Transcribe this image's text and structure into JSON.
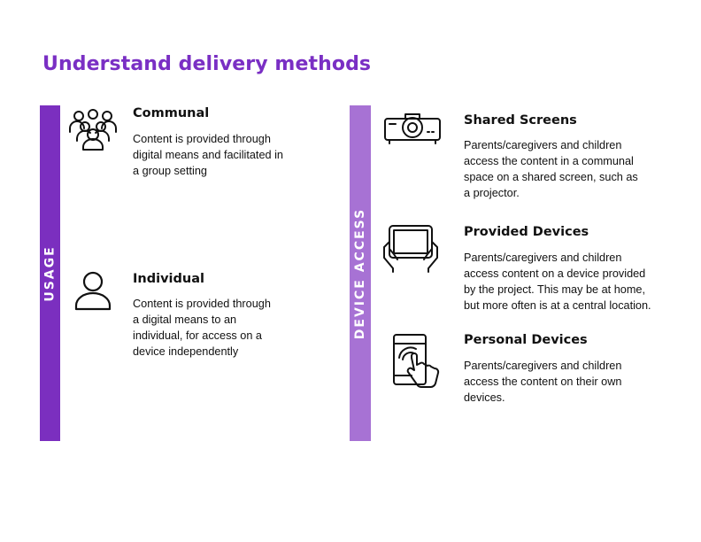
{
  "title": "Understand delivery methods",
  "colors": {
    "title": "#7a2fc4",
    "usage_bar": "#7b2fbf",
    "device_bar": "#a772d4"
  },
  "usage": {
    "label": "USAGE",
    "items": [
      {
        "icon": "group-icon",
        "title": "Communal",
        "lines": [
          "Content is provided through",
          "digital means and facilitated in",
          "a group setting"
        ]
      },
      {
        "icon": "person-icon",
        "title": "Individual",
        "lines": [
          "Content is provided through",
          "a digital means to an",
          "individual, for access on a",
          "device independently"
        ]
      }
    ]
  },
  "device_access": {
    "label": "DEVICE ACCESS",
    "items": [
      {
        "icon": "projector-icon",
        "title": "Shared Screens",
        "lines": [
          "Parents/caregivers and children",
          "access the content in a communal",
          "space on a shared screen, such as",
          "a projector."
        ]
      },
      {
        "icon": "tablet-hands-icon",
        "title": "Provided Devices",
        "lines": [
          "Parents/caregivers and children",
          "access content on a device provided",
          "by the project. This may be at home,",
          "but more often is at a central location."
        ]
      },
      {
        "icon": "tablet-touch-icon",
        "title": "Personal Devices",
        "lines": [
          "Parents/caregivers and children",
          "access the content on their own",
          "devices."
        ]
      }
    ]
  }
}
